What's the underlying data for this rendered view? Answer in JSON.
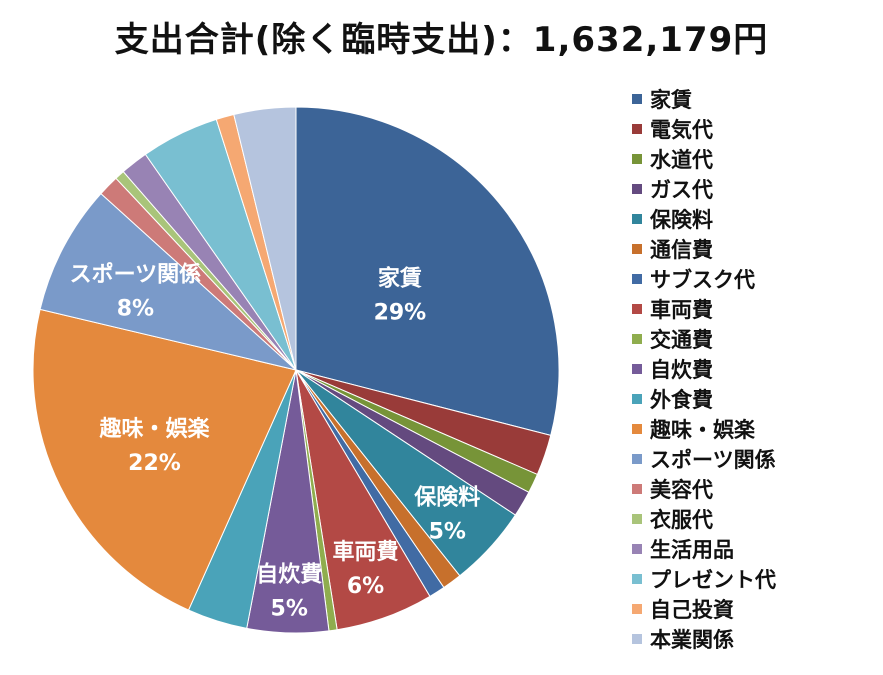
{
  "chart_data": {
    "type": "pie",
    "title": "支出合計(除く臨時支出)：1,632,179円",
    "legend_position": "right",
    "slices": [
      {
        "label": "家賃",
        "value": 29,
        "color": "#3c6497",
        "data_label": "家賃\n29%"
      },
      {
        "label": "電気代",
        "value": 2.5,
        "color": "#993b39",
        "data_label": ""
      },
      {
        "label": "水道代",
        "value": 1.2,
        "color": "#779438",
        "data_label": ""
      },
      {
        "label": "ガス代",
        "value": 1.6,
        "color": "#644a7f",
        "data_label": ""
      },
      {
        "label": "保険料",
        "value": 5,
        "color": "#31859c",
        "data_label": "保険料\n5%"
      },
      {
        "label": "通信費",
        "value": 1.2,
        "color": "#c7702c",
        "data_label": ""
      },
      {
        "label": "サブスク代",
        "value": 1,
        "color": "#416ba4",
        "data_label": ""
      },
      {
        "label": "車両費",
        "value": 6,
        "color": "#b34945",
        "data_label": "車両費\n6%"
      },
      {
        "label": "交通費",
        "value": 0.5,
        "color": "#8fad4e",
        "data_label": ""
      },
      {
        "label": "自炊費",
        "value": 5,
        "color": "#755b99",
        "data_label": "自炊費\n5%"
      },
      {
        "label": "外食費",
        "value": 3.7,
        "color": "#4aa3b9",
        "data_label": ""
      },
      {
        "label": "趣味・娯楽",
        "value": 22,
        "color": "#e4893d",
        "data_label": "趣味・娯楽\n22%"
      },
      {
        "label": "スポーツ関係",
        "value": 8,
        "color": "#7a9ac9",
        "data_label": "スポーツ関係\n8%"
      },
      {
        "label": "美容代",
        "value": 1.3,
        "color": "#cd7a78",
        "data_label": ""
      },
      {
        "label": "衣服代",
        "value": 0.6,
        "color": "#a9c47a",
        "data_label": ""
      },
      {
        "label": "生活用品",
        "value": 1.7,
        "color": "#9883b4",
        "data_label": ""
      },
      {
        "label": "プレゼント代",
        "value": 4.8,
        "color": "#79bfd1",
        "data_label": ""
      },
      {
        "label": "自己投資",
        "value": 1.1,
        "color": "#f5a872",
        "data_label": ""
      },
      {
        "label": "本業関係",
        "value": 3.8,
        "color": "#b5c4de",
        "data_label": ""
      }
    ]
  }
}
